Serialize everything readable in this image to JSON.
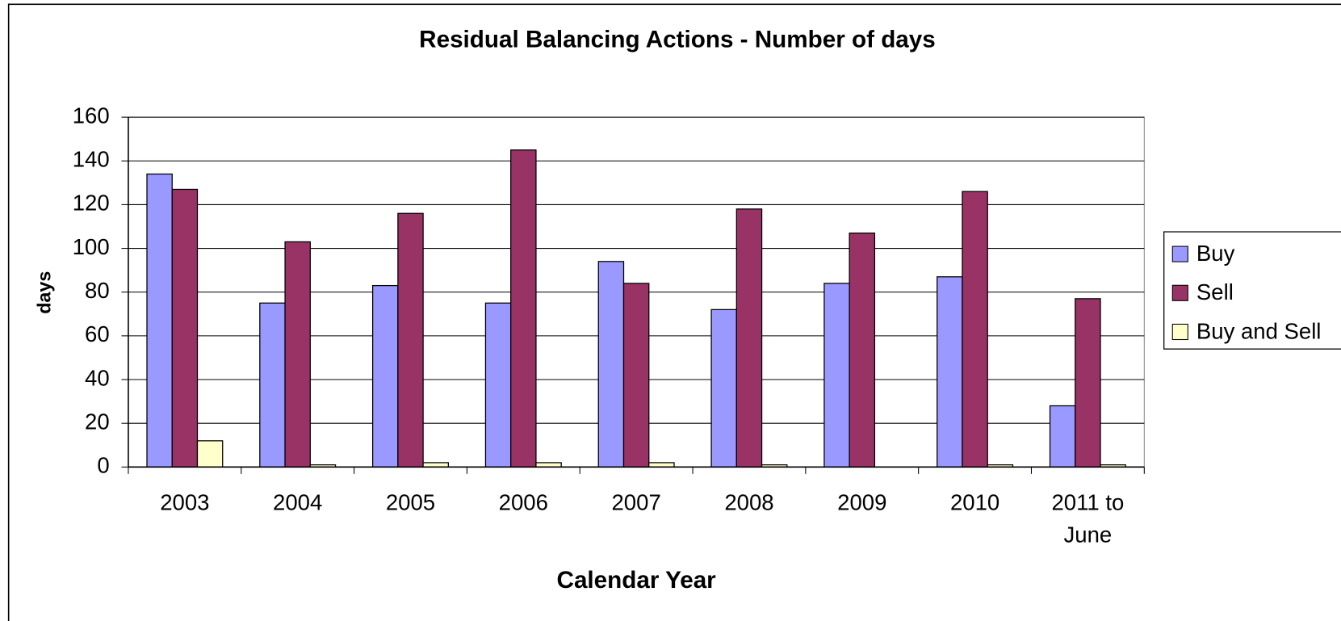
{
  "chart_data": {
    "type": "bar",
    "title": "Residual Balancing Actions - Number of days",
    "x_label": "Calendar Year",
    "y_label": "days",
    "categories": [
      "2003",
      "2004",
      "2005",
      "2006",
      "2007",
      "2008",
      "2009",
      "2010",
      "2011 to June"
    ],
    "series": [
      {
        "name": "Buy",
        "color": "#9999ff",
        "values": [
          134,
          75,
          83,
          75,
          94,
          72,
          84,
          87,
          28
        ]
      },
      {
        "name": "Sell",
        "color": "#993366",
        "values": [
          127,
          103,
          116,
          145,
          84,
          118,
          107,
          126,
          77
        ]
      },
      {
        "name": "Buy and Sell",
        "color": "#ffffcc",
        "values": [
          12,
          1,
          2,
          2,
          2,
          1,
          0,
          1,
          1
        ]
      }
    ],
    "ylim": [
      0,
      160
    ],
    "yticks": [
      0,
      20,
      40,
      60,
      80,
      100,
      120,
      140,
      160
    ],
    "grid": true,
    "legend": "right"
  }
}
